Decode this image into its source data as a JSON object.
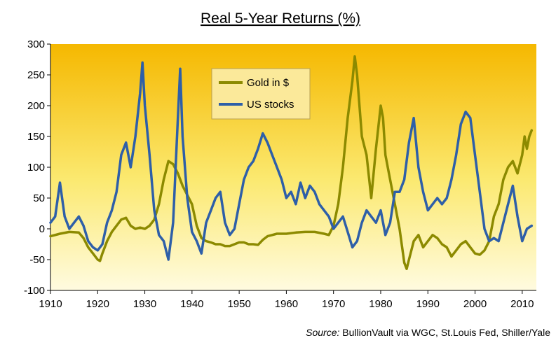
{
  "chart_data": {
    "type": "line",
    "title": "Real 5-Year Returns  (%)",
    "xlabel": "",
    "ylabel": "",
    "xlim": [
      1910,
      2013
    ],
    "ylim": [
      -100,
      300
    ],
    "x_ticks": [
      "1910",
      "1920",
      "1930",
      "1940",
      "1950",
      "1960",
      "1970",
      "1980",
      "1990",
      "2000",
      "2010"
    ],
    "y_ticks": [
      "-100",
      "-50",
      "0",
      "50",
      "100",
      "150",
      "200",
      "250",
      "300"
    ],
    "grid": false,
    "legend_position": "top-center",
    "source_label": "Source:",
    "source_text": " BullionVault via WGC, St.Louis Fed, Shiller/Yale",
    "series": [
      {
        "name": "Gold in $",
        "color": "#8c8a00",
        "x": [
          1910,
          1912,
          1914,
          1916,
          1917,
          1918,
          1919,
          1920,
          1920.5,
          1921,
          1922,
          1923,
          1924,
          1925,
          1926,
          1927,
          1928,
          1929,
          1930,
          1931,
          1932,
          1933,
          1934,
          1935,
          1936,
          1937,
          1938,
          1939,
          1940,
          1941,
          1942,
          1943,
          1944,
          1945,
          1946,
          1947,
          1948,
          1949,
          1950,
          1951,
          1952,
          1953,
          1954,
          1955,
          1956,
          1957,
          1958,
          1960,
          1962,
          1964,
          1966,
          1968,
          1969,
          1970,
          1971,
          1972,
          1973,
          1974,
          1974.5,
          1975,
          1975.5,
          1976,
          1977,
          1978,
          1979,
          1980,
          1980.5,
          1981,
          1982,
          1983,
          1984,
          1985,
          1985.5,
          1986,
          1987,
          1988,
          1989,
          1990,
          1991,
          1992,
          1993,
          1994,
          1995,
          1996,
          1997,
          1998,
          1999,
          2000,
          2001,
          2002,
          2003,
          2004,
          2005,
          2006,
          2007,
          2008,
          2009,
          2010,
          2010.5,
          2011,
          2011.5,
          2012
        ],
        "y": [
          -12,
          -8,
          -5,
          -6,
          -15,
          -30,
          -40,
          -50,
          -52,
          -40,
          -20,
          -5,
          5,
          15,
          18,
          5,
          0,
          2,
          0,
          5,
          15,
          40,
          80,
          110,
          105,
          90,
          70,
          55,
          40,
          5,
          -15,
          -20,
          -22,
          -25,
          -25,
          -28,
          -28,
          -25,
          -22,
          -22,
          -25,
          -25,
          -26,
          -18,
          -12,
          -10,
          -8,
          -8,
          -6,
          -5,
          -5,
          -8,
          -10,
          5,
          40,
          100,
          180,
          240,
          280,
          250,
          200,
          150,
          120,
          50,
          130,
          200,
          180,
          120,
          80,
          40,
          0,
          -55,
          -65,
          -50,
          -20,
          -10,
          -30,
          -20,
          -10,
          -15,
          -25,
          -30,
          -45,
          -35,
          -25,
          -20,
          -30,
          -40,
          -42,
          -35,
          -20,
          20,
          40,
          80,
          100,
          110,
          90,
          120,
          150,
          130,
          150,
          160
        ]
      },
      {
        "name": "US stocks",
        "color": "#2e5fa8",
        "x": [
          1910,
          1911,
          1912,
          1913,
          1914,
          1915,
          1916,
          1917,
          1918,
          1919,
          1920,
          1921,
          1922,
          1923,
          1924,
          1925,
          1926,
          1927,
          1928,
          1929,
          1929.5,
          1930,
          1931,
          1932,
          1933,
          1934,
          1935,
          1936,
          1937,
          1937.5,
          1938,
          1939,
          1940,
          1941,
          1942,
          1943,
          1944,
          1945,
          1946,
          1947,
          1948,
          1949,
          1950,
          1951,
          1952,
          1953,
          1954,
          1955,
          1956,
          1957,
          1958,
          1959,
          1960,
          1961,
          1962,
          1963,
          1964,
          1965,
          1966,
          1967,
          1968,
          1969,
          1970,
          1971,
          1972,
          1973,
          1974,
          1975,
          1976,
          1977,
          1978,
          1979,
          1980,
          1981,
          1982,
          1983,
          1984,
          1985,
          1986,
          1987,
          1988,
          1989,
          1990,
          1991,
          1992,
          1993,
          1994,
          1995,
          1996,
          1997,
          1998,
          1999,
          2000,
          2001,
          2002,
          2003,
          2004,
          2005,
          2006,
          2007,
          2008,
          2009,
          2010,
          2011,
          2012
        ],
        "y": [
          10,
          20,
          75,
          20,
          0,
          10,
          20,
          5,
          -20,
          -30,
          -35,
          -25,
          10,
          30,
          60,
          120,
          140,
          100,
          150,
          220,
          270,
          200,
          120,
          30,
          -10,
          -20,
          -50,
          10,
          180,
          260,
          150,
          50,
          -5,
          -20,
          -40,
          10,
          30,
          50,
          60,
          10,
          -10,
          0,
          40,
          80,
          100,
          110,
          130,
          155,
          140,
          120,
          100,
          80,
          50,
          60,
          40,
          75,
          50,
          70,
          60,
          40,
          30,
          20,
          0,
          10,
          20,
          -5,
          -30,
          -20,
          10,
          30,
          20,
          10,
          30,
          -10,
          10,
          60,
          60,
          80,
          140,
          180,
          100,
          60,
          30,
          40,
          50,
          40,
          50,
          80,
          120,
          170,
          190,
          180,
          120,
          60,
          0,
          -20,
          -15,
          -20,
          10,
          40,
          70,
          20,
          -20,
          0,
          5
        ]
      }
    ]
  }
}
